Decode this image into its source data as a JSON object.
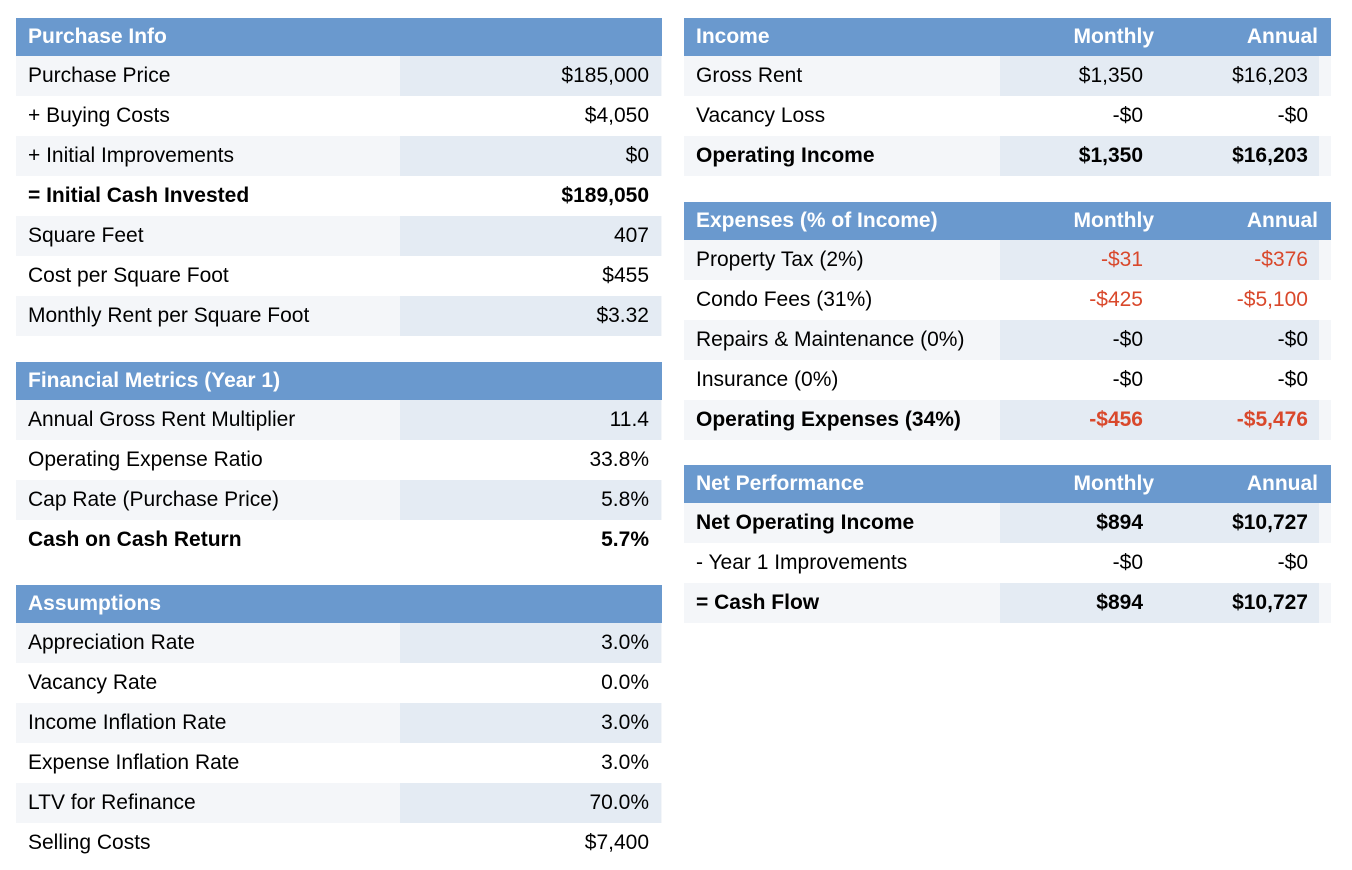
{
  "purchase_info": {
    "title": "Purchase Info",
    "rows": [
      {
        "label": "Purchase Price",
        "value": "$185,000"
      },
      {
        "label": "+ Buying Costs",
        "value": "$4,050"
      },
      {
        "label": "+ Initial Improvements",
        "value": "$0"
      },
      {
        "label": "= Initial Cash Invested",
        "value": "$189,050"
      },
      {
        "label": "Square Feet",
        "value": "407"
      },
      {
        "label": "Cost per Square Foot",
        "value": "$455"
      },
      {
        "label": "Monthly Rent per Square Foot",
        "value": "$3.32"
      }
    ]
  },
  "financial_metrics": {
    "title": "Financial Metrics (Year 1)",
    "rows": [
      {
        "label": "Annual Gross Rent Multiplier",
        "value": "11.4"
      },
      {
        "label": "Operating Expense Ratio",
        "value": "33.8%"
      },
      {
        "label": "Cap Rate (Purchase Price)",
        "value": "5.8%"
      },
      {
        "label": "Cash on Cash Return",
        "value": "5.7%"
      }
    ]
  },
  "assumptions": {
    "title": "Assumptions",
    "rows": [
      {
        "label": "Appreciation Rate",
        "value": "3.0%"
      },
      {
        "label": "Vacancy Rate",
        "value": "0.0%"
      },
      {
        "label": "Income Inflation Rate",
        "value": "3.0%"
      },
      {
        "label": "Expense Inflation Rate",
        "value": "3.0%"
      },
      {
        "label": "LTV for Refinance",
        "value": "70.0%"
      },
      {
        "label": "Selling Costs",
        "value": "$7,400"
      }
    ]
  },
  "income": {
    "title": "Income",
    "col_monthly": "Monthly",
    "col_annual": "Annual",
    "rows": [
      {
        "label": "Gross Rent",
        "monthly": "$1,350",
        "annual": "$16,203"
      },
      {
        "label": "Vacancy Loss",
        "monthly": "-$0",
        "annual": "-$0"
      },
      {
        "label": "Operating Income",
        "monthly": "$1,350",
        "annual": "$16,203"
      }
    ]
  },
  "expenses": {
    "title": "Expenses (% of Income)",
    "col_monthly": "Monthly",
    "col_annual": "Annual",
    "rows": [
      {
        "label": "Property Tax (2%)",
        "monthly": "-$31",
        "annual": "-$376"
      },
      {
        "label": "Condo Fees (31%)",
        "monthly": "-$425",
        "annual": "-$5,100"
      },
      {
        "label": "Repairs & Maintenance (0%)",
        "monthly": "-$0",
        "annual": "-$0"
      },
      {
        "label": "Insurance (0%)",
        "monthly": "-$0",
        "annual": "-$0"
      },
      {
        "label": "Operating Expenses (34%)",
        "monthly": "-$456",
        "annual": "-$5,476"
      }
    ]
  },
  "net_performance": {
    "title": "Net Performance",
    "col_monthly": "Monthly",
    "col_annual": "Annual",
    "rows": [
      {
        "label": "Net Operating Income",
        "monthly": "$894",
        "annual": "$10,727"
      },
      {
        "label": "- Year 1 Improvements",
        "monthly": "-$0",
        "annual": "-$0"
      },
      {
        "label": "= Cash Flow",
        "monthly": "$894",
        "annual": "$10,727"
      }
    ]
  },
  "colors": {
    "header_bg": "#6a99ce",
    "value_cell_bg": "#e4ebf3",
    "row_bg": "#f4f6f9",
    "negative_text": "#d9482b"
  }
}
